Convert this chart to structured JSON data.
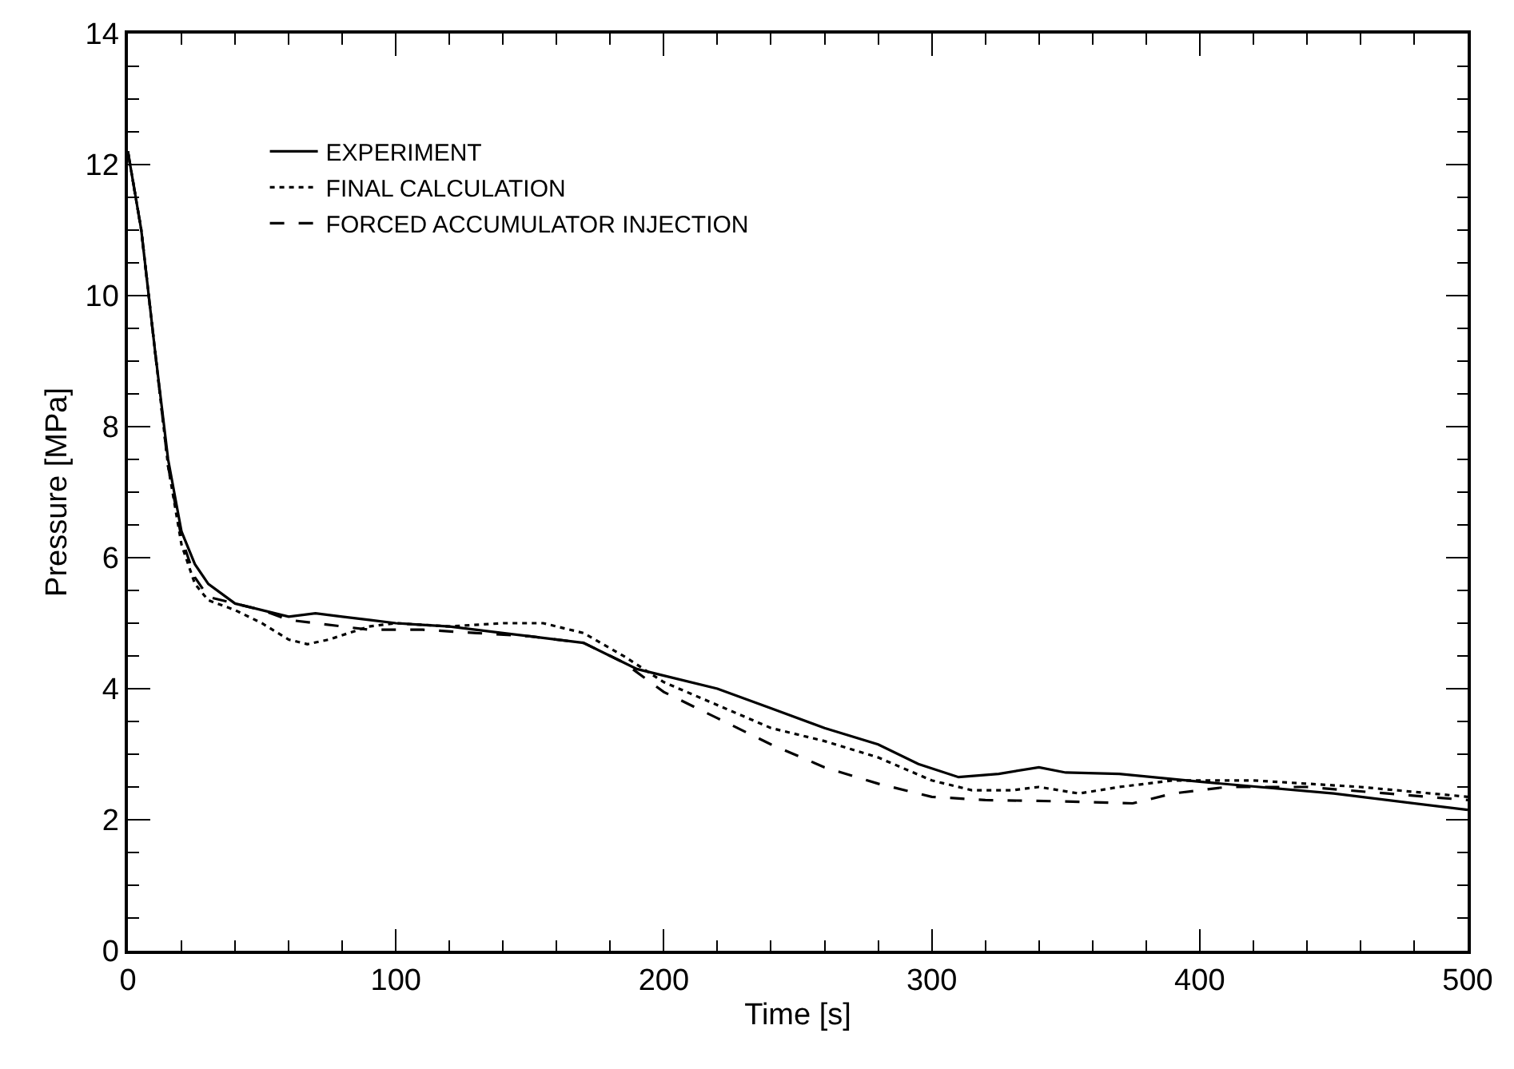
{
  "chart_data": {
    "type": "line",
    "xlabel": "Time [s]",
    "ylabel": "Pressure [MPa]",
    "xlim": [
      0,
      500
    ],
    "xticks": [
      0,
      100,
      200,
      300,
      400,
      500
    ],
    "ylim": [
      0,
      14
    ],
    "yticks": [
      0,
      2,
      4,
      6,
      8,
      10,
      12,
      14
    ],
    "grid": false,
    "legend": "top left",
    "marker": "none",
    "series": [
      {
        "name": "EXPERIMENT",
        "color": "#000000",
        "line_style": "solid",
        "x": [
          0,
          5,
          10,
          15,
          20,
          25,
          30,
          40,
          50,
          60,
          70,
          80,
          90,
          100,
          120,
          140,
          150,
          170,
          180,
          190,
          200,
          220,
          240,
          260,
          280,
          295,
          310,
          325,
          340,
          350,
          370,
          400,
          450,
          500
        ],
        "values": [
          12.2,
          11,
          9.2,
          7.5,
          6.4,
          5.9,
          5.6,
          5.3,
          5.2,
          5.1,
          5.15,
          5.1,
          5.05,
          5.0,
          4.95,
          4.85,
          4.8,
          4.7,
          4.5,
          4.3,
          4.2,
          4.0,
          3.7,
          3.4,
          3.15,
          2.85,
          2.65,
          2.7,
          2.8,
          2.72,
          2.7,
          2.58,
          2.4,
          2.15
        ]
      },
      {
        "name": "FINAL CALCULATION",
        "color": "#000000",
        "line_style": "dotted",
        "x": [
          0,
          5,
          10,
          15,
          20,
          25,
          30,
          40,
          50,
          60,
          67,
          75,
          90,
          100,
          120,
          140,
          155,
          170,
          185,
          200,
          220,
          240,
          260,
          280,
          300,
          315,
          330,
          340,
          355,
          370,
          390,
          420,
          460,
          500
        ],
        "values": [
          12.2,
          11,
          9.2,
          7.4,
          6.2,
          5.6,
          5.35,
          5.2,
          5.0,
          4.75,
          4.68,
          4.75,
          4.95,
          5.0,
          4.95,
          5.0,
          5.0,
          4.85,
          4.5,
          4.1,
          3.75,
          3.4,
          3.2,
          2.95,
          2.6,
          2.45,
          2.45,
          2.5,
          2.4,
          2.5,
          2.6,
          2.6,
          2.5,
          2.35
        ]
      },
      {
        "name": "FORCED ACCUMULATOR INJECTION",
        "color": "#000000",
        "line_style": "dashed",
        "x": [
          0,
          5,
          10,
          15,
          20,
          25,
          30,
          40,
          50,
          60,
          70,
          90,
          110,
          130,
          150,
          170,
          185,
          200,
          220,
          240,
          260,
          280,
          300,
          320,
          350,
          375,
          390,
          410,
          440,
          470,
          500
        ],
        "values": [
          12.2,
          11,
          9.2,
          7.4,
          6.3,
          5.7,
          5.4,
          5.3,
          5.2,
          5.05,
          5.0,
          4.9,
          4.9,
          4.85,
          4.8,
          4.7,
          4.4,
          3.95,
          3.55,
          3.15,
          2.8,
          2.55,
          2.35,
          2.3,
          2.28,
          2.25,
          2.4,
          2.5,
          2.5,
          2.4,
          2.3
        ]
      }
    ]
  }
}
